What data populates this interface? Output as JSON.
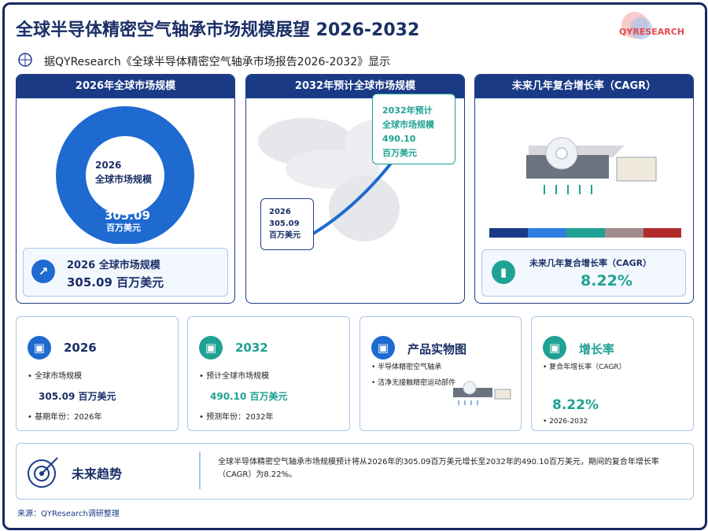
{
  "header": {
    "title": "全球半导体精密空气轴承市场规模展望 2026-2032",
    "logo": "QYRESEARCH",
    "subtitle": "据QYResearch《全球半导体精密空气轴承市场报告2026-2032》显示"
  },
  "panels": [
    {
      "title": "2026年全球市场规模",
      "center_year": "2026",
      "center_label": "全球市场规模",
      "center_value": "305.09",
      "center_unit": "百万美元",
      "card_label": "2026 全球市场规模",
      "card_value": "305.09 百万美元"
    },
    {
      "title": "2032年预计全球市场规模",
      "end_callout": [
        "2032年预计",
        "全球市场规模",
        "490.10",
        "百万美元"
      ],
      "start_callout": [
        "2026",
        "305.09",
        "百万美元"
      ]
    },
    {
      "title": "未来几年复合增长率（CAGR）",
      "card_label": "未来几年复合增长率（CAGR）",
      "card_value": "8.22%"
    }
  ],
  "cards": [
    {
      "title": "2026",
      "items": [
        "• 全球市场规模",
        "305.09 百万美元",
        "• 基期年份：2026年"
      ]
    },
    {
      "title": "2032",
      "items": [
        "• 预计全球市场规模",
        "490.10 百万美元",
        "• 预测年份：2032年"
      ]
    },
    {
      "title": "产品实物图",
      "items": [
        "• 半导体精密空气轴承",
        "• 洁净无接触精密运动部件"
      ]
    },
    {
      "title": "增长率",
      "items": [
        "• 复合年增长率（CAGR）",
        "8.22%",
        "• 2026-2032"
      ]
    }
  ],
  "trend": {
    "title": "未来趋势",
    "text": "全球半导体精密空气轴承市场规模预计将从2026年的305.09百万美元增长至2032年的490.10百万美元，期间的复合年增长率（CAGR）为8.22%。"
  },
  "source": "来源：QYResearch调研整理"
}
